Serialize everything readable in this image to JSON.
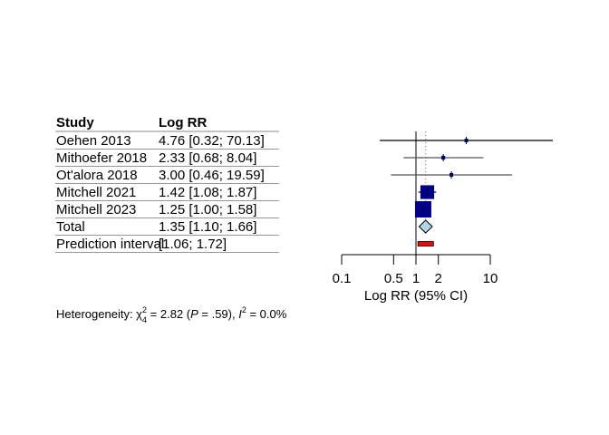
{
  "chart_data": {
    "type": "forest",
    "columns": [
      "Study",
      "Log RR"
    ],
    "rows": [
      {
        "study": "Oehen 2013",
        "est": 4.76,
        "lo": 0.32,
        "hi": 70.13,
        "text": "4.76 [0.32; 70.13]"
      },
      {
        "study": "Mithoefer 2018",
        "est": 2.33,
        "lo": 0.68,
        "hi": 8.04,
        "text": "2.33 [0.68;  8.04]"
      },
      {
        "study": "Ot'alora 2018",
        "est": 3.0,
        "lo": 0.46,
        "hi": 19.59,
        "text": "3.00 [0.46; 19.59]"
      },
      {
        "study": "Mitchell 2021",
        "est": 1.42,
        "lo": 1.08,
        "hi": 1.87,
        "text": "1.42 [1.08;  1.87]"
      },
      {
        "study": "Mitchell 2023",
        "est": 1.25,
        "lo": 1.0,
        "hi": 1.58,
        "text": "1.25 [1.00;  1.58]"
      }
    ],
    "total": {
      "label": "Total",
      "est": 1.35,
      "lo": 1.1,
      "hi": 1.66,
      "text": "1.35 [1.10;  1.66]"
    },
    "prediction": {
      "label": "Prediction interval",
      "lo": 1.06,
      "hi": 1.72,
      "text": "[1.06;  1.72]"
    },
    "xscale": "log",
    "xlim": [
      0.1,
      10
    ],
    "xticks": [
      0.1,
      0.5,
      1,
      2,
      10
    ],
    "xtick_labels": [
      "0.1",
      "0.5",
      "1",
      "2",
      "10"
    ],
    "xlabel": "Log RR (95% CI)",
    "heterogeneity": {
      "prefix": "Heterogeneity: ",
      "chi": "χ",
      "sup": "2",
      "sub": "4",
      "stat": " = 2.82 (",
      "p": "P",
      "pval": " = .59), ",
      "i": "I",
      "isup": "2",
      "ival": " = 0.0%"
    },
    "colors": {
      "square": "#00008B",
      "diamond": "#ADD8E6",
      "prediction": "#FF0000"
    }
  }
}
